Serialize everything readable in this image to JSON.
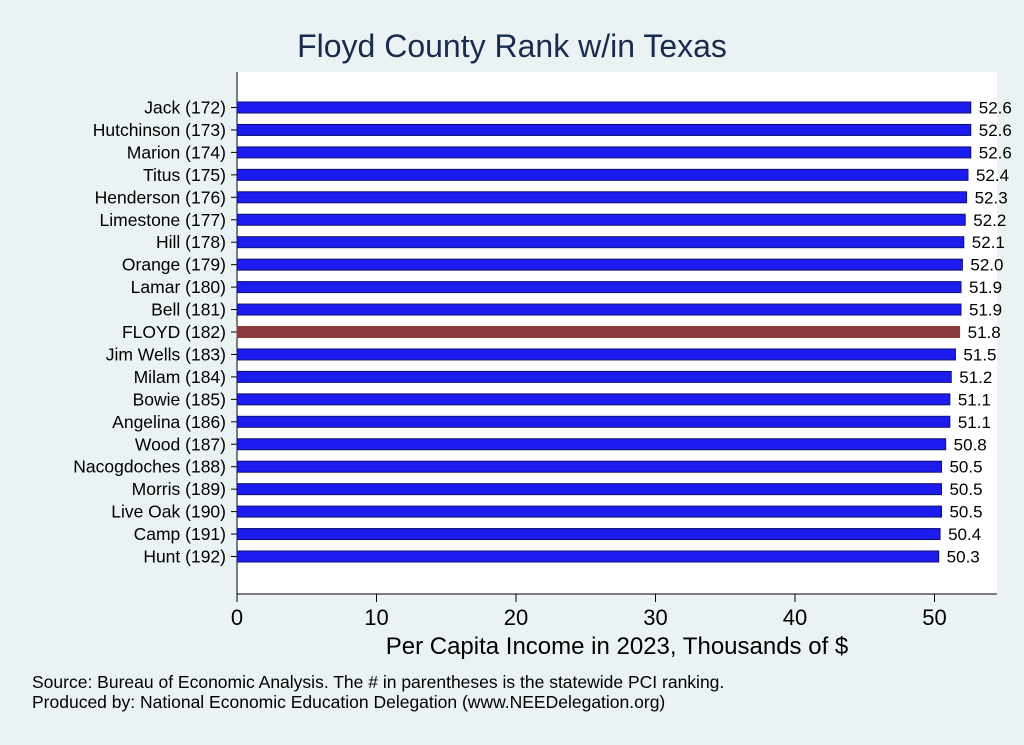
{
  "title": "Floyd County Rank w/in Texas",
  "source_note": "Source: Bureau of Economic Analysis. The # in parentheses is the statewide PCI ranking.",
  "producer_note": "Produced by: National Economic Education Delegation (www.NEEDelegation.org)",
  "colors": {
    "background": "#eaf2f3",
    "plot_background": "#ffffff",
    "bar": "#1c1cf0",
    "highlight_bar": "#8b3a3e",
    "bar_outline": "#11116e",
    "title": "#1a2b50"
  },
  "chart_data": {
    "type": "bar",
    "orientation": "horizontal",
    "title": "Floyd County Rank w/in Texas",
    "xlabel": "Per Capita Income in 2023, Thousands of $",
    "ylabel": "",
    "xlim": [
      0,
      54.5
    ],
    "xticks": [
      0,
      10,
      20,
      30,
      40,
      50
    ],
    "grid": false,
    "highlight": "FLOYD (182)",
    "categories": [
      "Jack (172)",
      "Hutchinson (173)",
      "Marion (174)",
      "Titus (175)",
      "Henderson (176)",
      "Limestone (177)",
      "Hill (178)",
      "Orange (179)",
      "Lamar (180)",
      "Bell (181)",
      "FLOYD (182)",
      "Jim Wells (183)",
      "Milam (184)",
      "Bowie (185)",
      "Angelina (186)",
      "Wood (187)",
      "Nacogdoches (188)",
      "Morris (189)",
      "Live Oak (190)",
      "Camp (191)",
      "Hunt (192)"
    ],
    "values": [
      52.6,
      52.6,
      52.6,
      52.4,
      52.3,
      52.2,
      52.1,
      52.0,
      51.9,
      51.9,
      51.8,
      51.5,
      51.2,
      51.1,
      51.1,
      50.8,
      50.5,
      50.5,
      50.5,
      50.4,
      50.3
    ],
    "value_labels": [
      "52.6",
      "52.6",
      "52.6",
      "52.4",
      "52.3",
      "52.2",
      "52.1",
      "52.0",
      "51.9",
      "51.9",
      "51.8",
      "51.5",
      "51.2",
      "51.1",
      "51.1",
      "50.8",
      "50.5",
      "50.5",
      "50.5",
      "50.4",
      "50.3"
    ]
  }
}
